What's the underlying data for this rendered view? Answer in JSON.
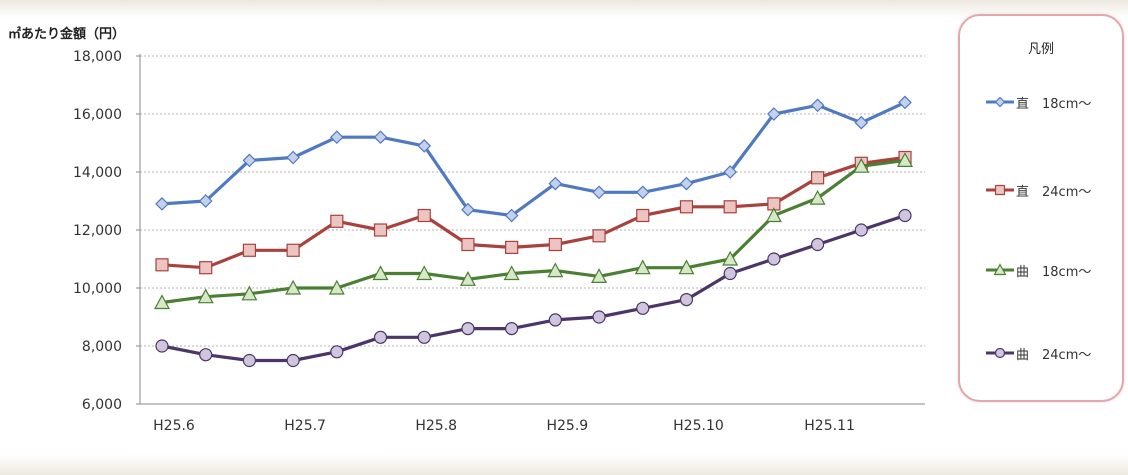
{
  "chart_data": {
    "type": "line",
    "ylabel": "㎡あたり金額（円）",
    "xlabel": "",
    "ylim": [
      6000,
      18000
    ],
    "yticks": [
      "6,000",
      "8,000",
      "10,000",
      "12,000",
      "14,000",
      "16,000",
      "18,000"
    ],
    "ytick_values": [
      6000,
      8000,
      10000,
      12000,
      14000,
      16000,
      18000
    ],
    "xtick_labels": [
      "H25.6",
      "H25.7",
      "H25.8",
      "H25.9",
      "H25.10",
      "H25.11"
    ],
    "grid": "horizontal dashed",
    "legend_title": "凡例",
    "legend_position": "right",
    "series": [
      {
        "name": "直　18cm～",
        "color": "#4f79c1",
        "marker": "diamond",
        "values": [
          12900,
          13000,
          14400,
          14500,
          15200,
          15200,
          14900,
          12700,
          12500,
          13600,
          13300,
          13300,
          13600,
          14000,
          16000,
          16300,
          15700,
          16400
        ]
      },
      {
        "name": "直　24cm～",
        "color": "#a9413d",
        "marker": "square",
        "values": [
          10800,
          10700,
          11300,
          11300,
          12300,
          12000,
          12500,
          11500,
          11400,
          11500,
          11800,
          12500,
          12800,
          12800,
          12900,
          13800,
          14300,
          14500
        ]
      },
      {
        "name": "曲　18cm～",
        "color": "#4a7f34",
        "marker": "triangle",
        "values": [
          9500,
          9700,
          9800,
          10000,
          10000,
          10500,
          10500,
          10300,
          10500,
          10600,
          10400,
          10700,
          10700,
          11000,
          12500,
          13100,
          14200,
          14400
        ]
      },
      {
        "name": "曲　24cm～",
        "color": "#4b3569",
        "marker": "circle",
        "values": [
          8000,
          7700,
          7500,
          7500,
          7800,
          8300,
          8300,
          8600,
          8600,
          8900,
          9000,
          9300,
          9600,
          10500,
          11000,
          11500,
          12000,
          12500
        ]
      }
    ]
  }
}
